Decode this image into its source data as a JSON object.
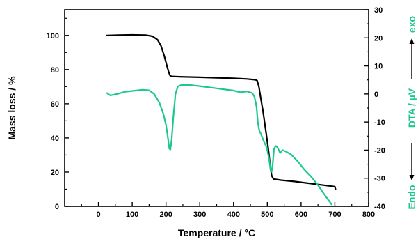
{
  "chart_data": {
    "type": "line",
    "xlabel": "Temperature / °C",
    "ylabel_left": "Mass loss / %",
    "ylabel_right": {
      "main": "DTA / µV",
      "endo": "Endo",
      "exo": "exo"
    },
    "xlim": [
      -100,
      800
    ],
    "ylim_left": [
      0,
      115
    ],
    "ylim_right": [
      -40,
      30
    ],
    "x_ticks": [
      0,
      100,
      200,
      300,
      400,
      500,
      600,
      700,
      800
    ],
    "y_left_ticks": [
      0,
      20,
      40,
      60,
      80,
      100
    ],
    "y_right_ticks": [
      -40,
      -30,
      -20,
      -10,
      0,
      10,
      20,
      30
    ],
    "grid": false,
    "series": [
      {
        "axis": "left",
        "color": "#000000",
        "points": [
          [
            25,
            100
          ],
          [
            60,
            100.2
          ],
          [
            100,
            100.3
          ],
          [
            140,
            100.2
          ],
          [
            160,
            99.5
          ],
          [
            175,
            97.5
          ],
          [
            185,
            94
          ],
          [
            195,
            88
          ],
          [
            203,
            82
          ],
          [
            208,
            78.5
          ],
          [
            212,
            76.5
          ],
          [
            216,
            76
          ],
          [
            240,
            75.8
          ],
          [
            300,
            75.5
          ],
          [
            350,
            75.2
          ],
          [
            400,
            74.9
          ],
          [
            440,
            74.5
          ],
          [
            465,
            74
          ],
          [
            470,
            73.5
          ],
          [
            475,
            70
          ],
          [
            480,
            64
          ],
          [
            487,
            56
          ],
          [
            495,
            45
          ],
          [
            502,
            35
          ],
          [
            508,
            25
          ],
          [
            513,
            18
          ],
          [
            518,
            16
          ],
          [
            540,
            15.3
          ],
          [
            580,
            14.5
          ],
          [
            620,
            13.5
          ],
          [
            660,
            12.5
          ],
          [
            700,
            11.5
          ],
          [
            702,
            10
          ]
        ]
      },
      {
        "axis": "right",
        "color": "#1ec88c",
        "points": [
          [
            25,
            0.3
          ],
          [
            35,
            -0.5
          ],
          [
            55,
            0
          ],
          [
            80,
            0.8
          ],
          [
            110,
            1.2
          ],
          [
            130,
            1.5
          ],
          [
            150,
            1.3
          ],
          [
            165,
            0
          ],
          [
            180,
            -3
          ],
          [
            192,
            -7
          ],
          [
            200,
            -11
          ],
          [
            205,
            -15
          ],
          [
            210,
            -19.5
          ],
          [
            213,
            -19.8
          ],
          [
            217,
            -16
          ],
          [
            222,
            -8
          ],
          [
            228,
            0
          ],
          [
            235,
            2.7
          ],
          [
            245,
            3.2
          ],
          [
            270,
            3.2
          ],
          [
            300,
            2.8
          ],
          [
            350,
            2
          ],
          [
            400,
            1.2
          ],
          [
            420,
            0.6
          ],
          [
            440,
            0.9
          ],
          [
            455,
            0.3
          ],
          [
            462,
            -1
          ],
          [
            468,
            -4.5
          ],
          [
            472,
            -10
          ],
          [
            476,
            -13
          ],
          [
            482,
            -14.5
          ],
          [
            490,
            -17
          ],
          [
            498,
            -19
          ],
          [
            505,
            -23
          ],
          [
            510,
            -27.5
          ],
          [
            513,
            -27.7
          ],
          [
            516,
            -25
          ],
          [
            520,
            -19.5
          ],
          [
            525,
            -18.5
          ],
          [
            530,
            -19
          ],
          [
            538,
            -21
          ],
          [
            545,
            -20
          ],
          [
            555,
            -20.5
          ],
          [
            570,
            -21.5
          ],
          [
            590,
            -24
          ],
          [
            610,
            -27
          ],
          [
            630,
            -29.5
          ],
          [
            650,
            -32.5
          ],
          [
            670,
            -36
          ],
          [
            690,
            -39.3
          ]
        ]
      }
    ]
  }
}
